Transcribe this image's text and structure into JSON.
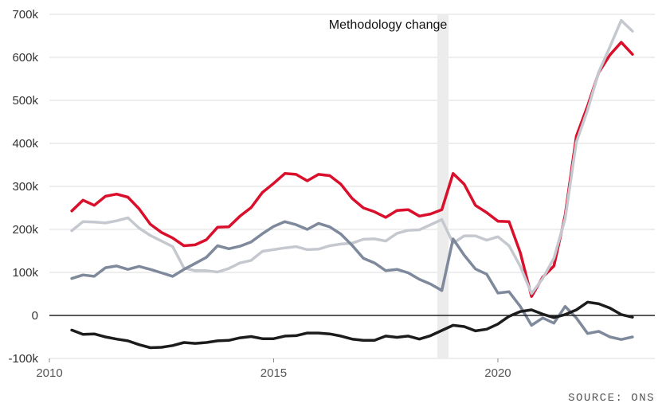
{
  "chart_data": {
    "type": "line",
    "title": "",
    "xlabel": "",
    "ylabel": "",
    "xlim": [
      2010,
      2023.5
    ],
    "ylim": [
      -100000,
      700000
    ],
    "x_ticks": [
      2010,
      2015,
      2020
    ],
    "x_tick_labels": [
      "2010",
      "2015",
      "2020"
    ],
    "y_ticks": [
      -100000,
      0,
      100000,
      200000,
      300000,
      400000,
      500000,
      600000,
      700000
    ],
    "y_tick_labels": [
      "-100k",
      "0",
      "100k",
      "200k",
      "300k",
      "400k",
      "500k",
      "600k",
      "700k"
    ],
    "grid": "horizontal",
    "annotation": {
      "label": "Methodology change",
      "x_start": 2018.65,
      "x_end": 2018.9
    },
    "source": "SOURCE: ONS",
    "x": [
      2010.5,
      2010.75,
      2011,
      2011.25,
      2011.5,
      2011.75,
      2012,
      2012.25,
      2012.5,
      2012.75,
      2013,
      2013.25,
      2013.5,
      2013.75,
      2014,
      2014.25,
      2014.5,
      2014.75,
      2015,
      2015.25,
      2015.5,
      2015.75,
      2016,
      2016.25,
      2016.5,
      2016.75,
      2017,
      2017.25,
      2017.5,
      2017.75,
      2018,
      2018.25,
      2018.5,
      2018.75,
      2019,
      2019.25,
      2019.5,
      2019.75,
      2020,
      2020.25,
      2020.5,
      2020.75,
      2021,
      2021.25,
      2021.5,
      2021.75,
      2022,
      2022.25,
      2022.5,
      2022.75,
      2023
    ],
    "series": [
      {
        "color": "#d90f2b",
        "values": [
          243000,
          268000,
          256000,
          277000,
          282000,
          275000,
          248000,
          212000,
          193000,
          180000,
          162000,
          164000,
          176000,
          205000,
          206000,
          231000,
          251000,
          286000,
          307000,
          330000,
          328000,
          313000,
          328000,
          325000,
          305000,
          272000,
          250000,
          241000,
          228000,
          244000,
          246000,
          231000,
          236000,
          246000,
          330000,
          305000,
          256000,
          239000,
          219000,
          218000,
          146000,
          44000,
          89000,
          115000,
          233000,
          417000,
          487000,
          565000,
          606000,
          635000,
          607000
        ]
      },
      {
        "color": "#c5c9cf",
        "values": [
          197000,
          218000,
          217000,
          215000,
          220000,
          227000,
          203000,
          186000,
          173000,
          160000,
          110000,
          104000,
          104000,
          101000,
          109000,
          122000,
          128000,
          149000,
          153000,
          157000,
          160000,
          153000,
          154000,
          162000,
          166000,
          168000,
          177000,
          178000,
          173000,
          191000,
          198000,
          199000,
          211000,
          223000,
          168000,
          185000,
          185000,
          175000,
          183000,
          162000,
          114000,
          51000,
          86000,
          133000,
          225000,
          403000,
          478000,
          566000,
          625000,
          686000,
          661000
        ]
      },
      {
        "color": "#7e899b",
        "values": [
          86000,
          94000,
          91000,
          111000,
          115000,
          107000,
          114000,
          107000,
          99000,
          91000,
          107000,
          121000,
          135000,
          162000,
          155000,
          161000,
          171000,
          190000,
          207000,
          218000,
          211000,
          200000,
          214000,
          206000,
          189000,
          163000,
          133000,
          122000,
          104000,
          107000,
          99000,
          84000,
          73000,
          58000,
          178000,
          140000,
          108000,
          96000,
          52000,
          55000,
          21000,
          -23000,
          -6000,
          -18000,
          21000,
          -6000,
          -42000,
          -37000,
          -50000,
          -56000,
          -50000
        ]
      },
      {
        "color": "#1c1c1c",
        "values": [
          -34000,
          -44000,
          -43000,
          -50000,
          -55000,
          -59000,
          -68000,
          -75000,
          -74000,
          -70000,
          -63000,
          -65000,
          -63000,
          -59000,
          -58000,
          -52000,
          -49000,
          -54000,
          -54000,
          -48000,
          -47000,
          -41000,
          -41000,
          -43000,
          -48000,
          -55000,
          -58000,
          -58000,
          -48000,
          -51000,
          -48000,
          -55000,
          -47000,
          -35000,
          -23000,
          -26000,
          -36000,
          -32000,
          -20000,
          -2000,
          9000,
          13000,
          3000,
          -5000,
          2000,
          13000,
          31000,
          27000,
          17000,
          2000,
          -4000
        ]
      }
    ]
  }
}
